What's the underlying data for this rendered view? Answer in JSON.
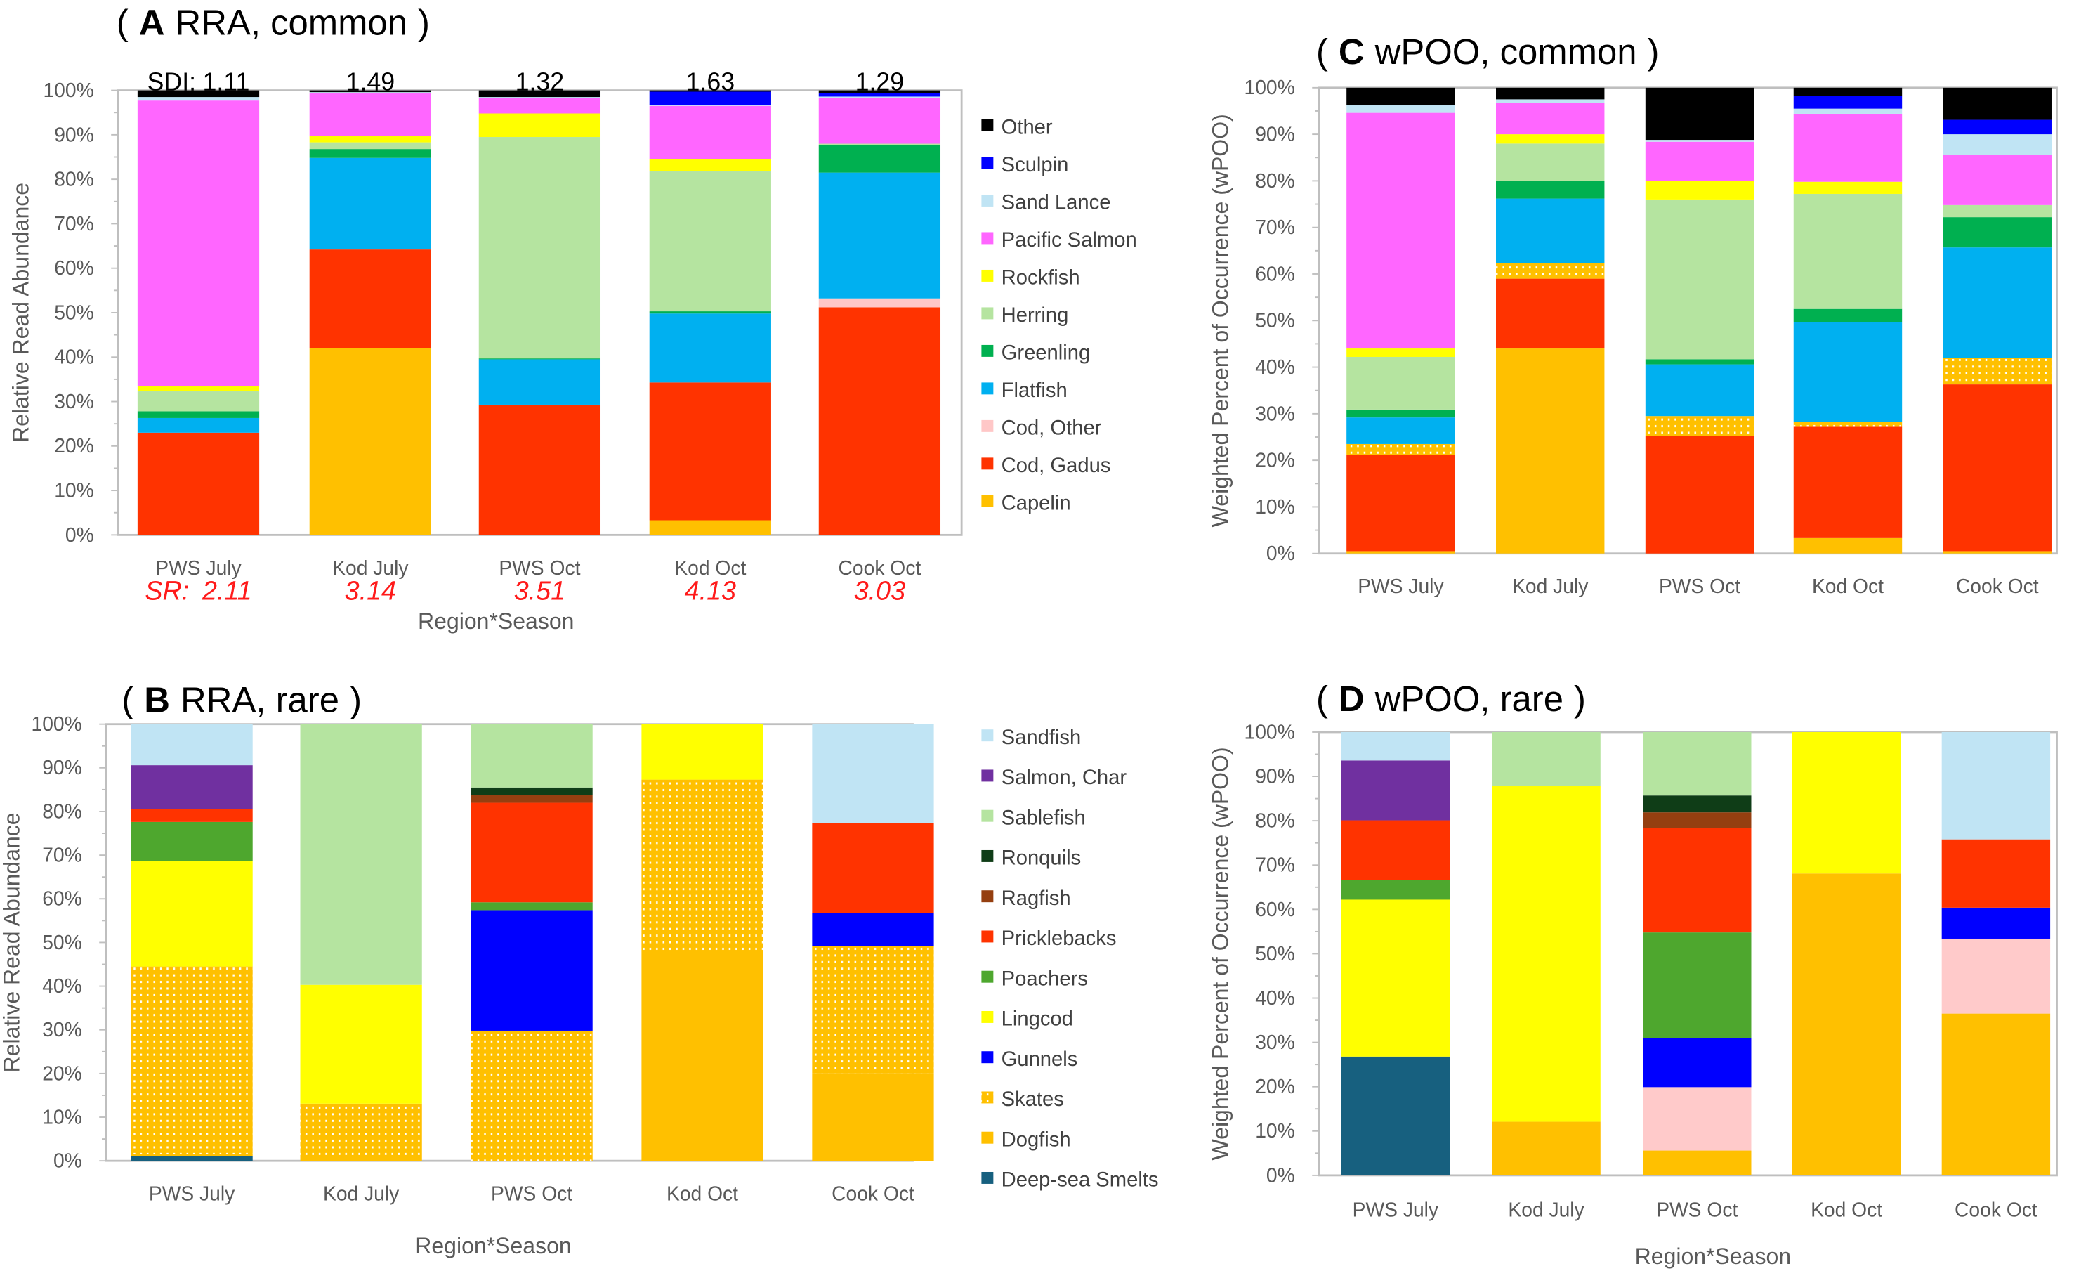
{
  "chart_data": [
    {
      "panel": "A",
      "type": "bar",
      "stacked": true,
      "title_open": "(",
      "title_letter": "A",
      "title": "RRA, common",
      "title_close": ")",
      "ylabel": "Relative Read Abundance",
      "xlabel": "Region*Season",
      "ylim": [
        0,
        100
      ],
      "yticks": [
        "0%",
        "10%",
        "20%",
        "30%",
        "40%",
        "50%",
        "60%",
        "70%",
        "80%",
        "90%",
        "100%"
      ],
      "categories": [
        "PWS July",
        "Kod July",
        "PWS Oct",
        "Kod Oct",
        "Cook Oct"
      ],
      "sdi_label": "SDI:",
      "sdi": [
        "1.11",
        "1.49",
        "1.32",
        "1.63",
        "1.29"
      ],
      "sr_label": "SR:",
      "sr": [
        "2.11",
        "3.14",
        "3.51",
        "4.13",
        "3.03"
      ],
      "legend": "right",
      "series": [
        {
          "name": "Capelin",
          "color": "#ffc000",
          "values": [
            0,
            42,
            0,
            3.3,
            0
          ]
        },
        {
          "name": "Cod, Gadus",
          "color": "#ff3300",
          "values": [
            23,
            22.2,
            29.3,
            31,
            51.2
          ]
        },
        {
          "name": "Cod, Other",
          "color": "#ffc7c7",
          "values": [
            0,
            0,
            0,
            0,
            2
          ]
        },
        {
          "name": "Flatfish",
          "color": "#00b0f0",
          "values": [
            3.3,
            20.6,
            10.2,
            15.5,
            28.3
          ]
        },
        {
          "name": "Greenling",
          "color": "#00b050",
          "values": [
            1.5,
            2,
            0.2,
            0.5,
            6.2
          ]
        },
        {
          "name": "Herring",
          "color": "#b5e4a0",
          "values": [
            4.5,
            1.5,
            49.8,
            31.5,
            0.3
          ]
        },
        {
          "name": "Rockfish",
          "color": "#ffff00",
          "values": [
            1.2,
            1.4,
            5.3,
            2.7,
            0
          ]
        },
        {
          "name": "Pacific Salmon",
          "color": "#ff66ff",
          "values": [
            64.2,
            9.6,
            3.5,
            12,
            10.3
          ]
        },
        {
          "name": "Sand Lance",
          "color": "#c0e4f4",
          "values": [
            0.8,
            0.3,
            0.2,
            0.2,
            0.3
          ]
        },
        {
          "name": "Sculpin",
          "color": "#0000ff",
          "values": [
            0,
            0,
            0,
            3,
            0.7
          ]
        },
        {
          "name": "Other",
          "color": "#000000",
          "values": [
            1.5,
            0.4,
            1.5,
            0.3,
            0.7
          ]
        }
      ]
    },
    {
      "panel": "B",
      "type": "bar",
      "stacked": true,
      "title_open": "(",
      "title_letter": "B",
      "title": "RRA, rare",
      "title_close": ")",
      "ylabel": "Relative Read Abundance",
      "xlabel": "Region*Season",
      "ylim": [
        0,
        100
      ],
      "yticks": [
        "0%",
        "10%",
        "20%",
        "30%",
        "40%",
        "50%",
        "60%",
        "70%",
        "80%",
        "90%",
        "100%"
      ],
      "categories": [
        "PWS July",
        "Kod July",
        "PWS Oct",
        "Kod Oct",
        "Cook Oct"
      ],
      "legend": "right",
      "series": [
        {
          "name": "Deep-sea Smelts",
          "color": "#17607f",
          "values": [
            1,
            0,
            0,
            0,
            0
          ]
        },
        {
          "name": "Dogfish",
          "color": "#ffc000",
          "values": [
            0.5,
            0.5,
            0,
            48,
            20
          ]
        },
        {
          "name": "Skates",
          "color": "#ffc000",
          "pattern": "dots",
          "values": [
            43,
            12.6,
            29.8,
            39.3,
            29.2
          ]
        },
        {
          "name": "Gunnels",
          "color": "#0000ff",
          "values": [
            0,
            0,
            27.6,
            0,
            7.6
          ]
        },
        {
          "name": "Lingcod",
          "color": "#ffff00",
          "values": [
            24.2,
            27.2,
            0,
            12.7,
            0
          ]
        },
        {
          "name": "Poachers",
          "color": "#4ea72e",
          "values": [
            8.9,
            0,
            1.8,
            0,
            0
          ]
        },
        {
          "name": "Pricklebacks",
          "color": "#ff3300",
          "values": [
            3,
            0,
            22.8,
            0,
            20.5
          ]
        },
        {
          "name": "Ragfish",
          "color": "#953f10",
          "values": [
            0,
            0,
            1.8,
            0,
            0
          ]
        },
        {
          "name": "Ronquils",
          "color": "#0f3d17",
          "values": [
            0,
            0,
            1.7,
            0,
            0
          ]
        },
        {
          "name": "Sablefish",
          "color": "#b5e4a0",
          "values": [
            0,
            59.7,
            14.5,
            0,
            0
          ]
        },
        {
          "name": "Salmon, Char",
          "color": "#7030a0",
          "values": [
            10,
            0,
            0,
            0,
            0
          ]
        },
        {
          "name": "Sandfish",
          "color": "#c0e4f4",
          "values": [
            9.4,
            0,
            0,
            0,
            22.7
          ]
        }
      ]
    },
    {
      "panel": "C",
      "type": "bar",
      "stacked": true,
      "title_open": "(",
      "title_letter": "C",
      "title": "wPOO, common",
      "title_close": ")",
      "ylabel": "Weighted Percent of Occurrence (wPOO)",
      "xlabel": "",
      "ylim": [
        0,
        100
      ],
      "yticks": [
        "0%",
        "10%",
        "20%",
        "30%",
        "40%",
        "50%",
        "60%",
        "70%",
        "80%",
        "90%",
        "100%"
      ],
      "categories": [
        "PWS July",
        "Kod July",
        "PWS Oct",
        "Kod Oct",
        "Cook Oct"
      ],
      "series": [
        {
          "name": "Capelin",
          "color": "#ffc000",
          "values": [
            0.5,
            44,
            0,
            3.3,
            0.5
          ]
        },
        {
          "name": "Cod, Gadus",
          "color": "#ff3300",
          "values": [
            20.7,
            15,
            25.3,
            23.9,
            35.8
          ]
        },
        {
          "name": "Cod, Other",
          "color": "#ffc000",
          "pattern": "dots",
          "values": [
            2.3,
            3.3,
            4.2,
            1,
            5.6
          ]
        },
        {
          "name": "Flatfish",
          "color": "#00b0f0",
          "values": [
            5.7,
            13.9,
            11.1,
            21.5,
            23.8
          ]
        },
        {
          "name": "Greenling",
          "color": "#00b050",
          "values": [
            1.7,
            3.8,
            1.1,
            2.8,
            6.5
          ]
        },
        {
          "name": "Herring",
          "color": "#b5e4a0",
          "values": [
            11.3,
            8,
            34.3,
            24.7,
            2.6
          ]
        },
        {
          "name": "Rockfish",
          "color": "#ffff00",
          "values": [
            1.8,
            2,
            4,
            2.6,
            0
          ]
        },
        {
          "name": "Pacific Salmon",
          "color": "#ff66ff",
          "values": [
            50.6,
            6.7,
            8.4,
            14.6,
            10.7
          ]
        },
        {
          "name": "Sand Lance",
          "color": "#c0e4f4",
          "values": [
            1.6,
            0.8,
            0.4,
            1.1,
            4.5
          ]
        },
        {
          "name": "Sculpin",
          "color": "#0000ff",
          "values": [
            0,
            0,
            0,
            2.7,
            3.1
          ]
        },
        {
          "name": "Other",
          "color": "#000000",
          "values": [
            3.8,
            2.5,
            11.2,
            1.8,
            6.9
          ]
        }
      ]
    },
    {
      "panel": "D",
      "type": "bar",
      "stacked": true,
      "title_open": "(",
      "title_letter": "D",
      "title": "wPOO, rare",
      "title_close": ")",
      "ylabel": "Weighted Percent of Occurrence (wPOO)",
      "xlabel": "Region*Season",
      "ylim": [
        0,
        100
      ],
      "yticks": [
        "0%",
        "10%",
        "20%",
        "30%",
        "40%",
        "50%",
        "60%",
        "70%",
        "80%",
        "90%",
        "100%"
      ],
      "categories": [
        "PWS July",
        "Kod July",
        "PWS Oct",
        "Kod Oct",
        "Cook Oct"
      ],
      "series": [
        {
          "name": "Deep-sea Smelts",
          "color": "#17607f",
          "values": [
            26.8,
            0,
            0,
            0,
            0
          ]
        },
        {
          "name": "Dogfish",
          "color": "#ffc000",
          "values": [
            0,
            12.1,
            5.6,
            68.1,
            36.5
          ]
        },
        {
          "name": "Skates",
          "color": "#ffcaca",
          "values": [
            0,
            0,
            14.3,
            0,
            16.9
          ]
        },
        {
          "name": "Gunnels",
          "color": "#0000ff",
          "values": [
            0,
            0,
            11,
            0,
            7
          ]
        },
        {
          "name": "Lingcod",
          "color": "#ffff00",
          "values": [
            35.4,
            75.7,
            0,
            31.9,
            0
          ]
        },
        {
          "name": "Poachers",
          "color": "#4ea72e",
          "values": [
            4.5,
            0,
            23.9,
            0,
            0
          ]
        },
        {
          "name": "Pricklebacks",
          "color": "#ff3300",
          "values": [
            13.4,
            0,
            23.5,
            0,
            15.4
          ]
        },
        {
          "name": "Ragfish",
          "color": "#953f10",
          "values": [
            0,
            0,
            3.6,
            0,
            0
          ]
        },
        {
          "name": "Ronquils",
          "color": "#0f3d17",
          "values": [
            0,
            0,
            3.8,
            0,
            0
          ]
        },
        {
          "name": "Sablefish",
          "color": "#b5e4a0",
          "values": [
            0,
            12.2,
            14.3,
            0,
            0
          ]
        },
        {
          "name": "Salmon, Char",
          "color": "#7030a0",
          "values": [
            13.5,
            0,
            0,
            0,
            0
          ]
        },
        {
          "name": "Sandfish",
          "color": "#c0e4f4",
          "values": [
            6.4,
            0,
            0,
            0,
            24.2
          ]
        }
      ]
    }
  ]
}
